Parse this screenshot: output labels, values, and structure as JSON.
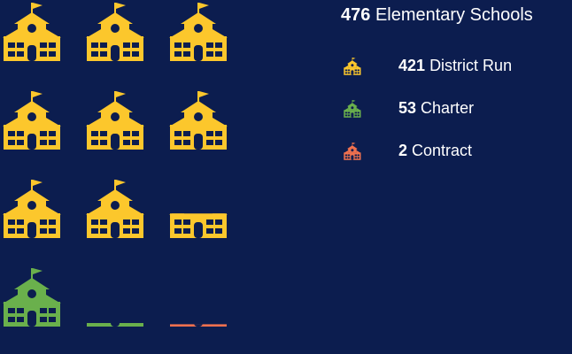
{
  "header": {
    "total": 476,
    "label": "Elementary Schools"
  },
  "chart_data": {
    "type": "pictogram",
    "series": [
      {
        "name": "District Run",
        "color": "#fcc72c",
        "value": 421
      },
      {
        "name": "Charter",
        "color": "#6ab04c",
        "value": 53
      },
      {
        "name": "Contract",
        "color": "#f0714f",
        "value": 2
      }
    ]
  }
}
